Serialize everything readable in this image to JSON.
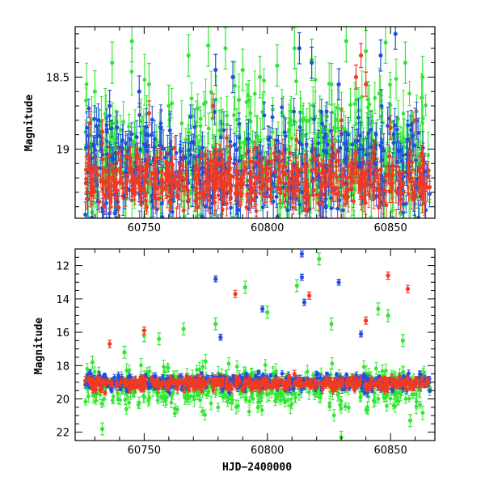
{
  "colors": {
    "green": "#33e633",
    "blue": "#1f4fdc",
    "red": "#f03a24",
    "axis": "#000000"
  },
  "chart_data": [
    {
      "type": "scatter",
      "panel": "top",
      "title": "",
      "xlabel": "",
      "ylabel": "Magnitude",
      "xlim": [
        60722,
        60868
      ],
      "ylim": [
        18.15,
        19.48
      ],
      "y_inverted": true,
      "x_ticks": [
        60750,
        60800,
        60850
      ],
      "x_tick_labels": [
        "60750",
        "60800",
        "60850"
      ],
      "y_ticks": [
        18.5,
        19
      ],
      "y_tick_labels": [
        "18.5",
        "19"
      ],
      "grid": false,
      "legend": "none",
      "series": [
        {
          "color": "green",
          "x_range": [
            60726,
            60866
          ],
          "mag_center": 19.05,
          "mag_spread": 0.45,
          "err": 0.12,
          "x": [
            60730,
            60737,
            60745,
            60752,
            60760,
            60768,
            60776,
            60783,
            60790,
            60797,
            60804,
            60811,
            60818,
            60826,
            60832,
            60840,
            60848,
            60856,
            60863
          ],
          "y": [
            18.6,
            18.4,
            18.25,
            18.55,
            18.7,
            18.35,
            18.28,
            18.3,
            18.45,
            18.5,
            18.42,
            18.3,
            18.38,
            18.55,
            18.25,
            18.32,
            18.26,
            18.4,
            18.5
          ]
        },
        {
          "color": "blue",
          "x_range": [
            60726,
            60866
          ],
          "mag_center": 19.15,
          "mag_spread": 0.35,
          "err": 0.09,
          "x": [
            60736,
            60739,
            60748,
            60779,
            60786,
            60813,
            60818,
            60829,
            60846,
            60852
          ],
          "y": [
            18.7,
            18.85,
            18.6,
            18.45,
            18.5,
            18.3,
            18.4,
            18.55,
            18.35,
            18.2
          ]
        },
        {
          "color": "red",
          "x_range": [
            60726,
            60866
          ],
          "mag_center": 19.22,
          "mag_spread": 0.18,
          "err": 0.07,
          "x": [
            60728,
            60733,
            60752,
            60778,
            60830,
            60836,
            60838,
            60840,
            60850,
            60860
          ],
          "y": [
            18.82,
            18.88,
            18.75,
            18.7,
            18.8,
            18.5,
            18.35,
            18.55,
            18.85,
            18.8
          ]
        }
      ]
    },
    {
      "type": "scatter",
      "panel": "bottom",
      "title": "",
      "xlabel": "HJD−2400000",
      "ylabel": "Magnitude",
      "xlim": [
        60722,
        60868
      ],
      "ylim": [
        11.0,
        22.5
      ],
      "y_inverted": true,
      "x_ticks": [
        60750,
        60800,
        60850
      ],
      "x_tick_labels": [
        "60750",
        "60800",
        "60850"
      ],
      "y_ticks": [
        12,
        14,
        16,
        18,
        20,
        22
      ],
      "y_tick_labels": [
        "12",
        "14",
        "16",
        "18",
        "20",
        "22"
      ],
      "grid": false,
      "legend": "none",
      "series": [
        {
          "color": "green",
          "x_range": [
            60726,
            60866
          ],
          "mag_center": 19.4,
          "mag_spread": 1.2,
          "err": 0.3,
          "x": [
            60729,
            60733,
            60742,
            60750,
            60756,
            60766,
            60779,
            60791,
            60800,
            60812,
            60821,
            60826,
            60830,
            60845,
            60849,
            60855,
            60858
          ],
          "y": [
            17.8,
            21.8,
            17.2,
            16.2,
            16.4,
            15.8,
            15.5,
            13.3,
            14.8,
            13.2,
            11.6,
            15.5,
            22.3,
            14.6,
            15.0,
            16.5,
            21.3
          ]
        },
        {
          "color": "blue",
          "x_range": [
            60726,
            60866
          ],
          "mag_center": 19.0,
          "mag_spread": 0.45,
          "err": 0.15,
          "x": [
            60779,
            60781,
            60798,
            60814,
            60814,
            60815,
            60829,
            60838,
            60862
          ],
          "y": [
            12.8,
            16.3,
            14.6,
            11.3,
            12.7,
            14.2,
            13.0,
            16.1,
            18.5
          ]
        },
        {
          "color": "red",
          "x_range": [
            60726,
            60866
          ],
          "mag_center": 19.1,
          "mag_spread": 0.35,
          "err": 0.18,
          "x": [
            60736,
            60750,
            60787,
            60811,
            60817,
            60840,
            60849,
            60857
          ],
          "y": [
            16.7,
            15.9,
            13.7,
            18.5,
            13.8,
            15.3,
            12.6,
            13.4
          ]
        }
      ]
    }
  ]
}
